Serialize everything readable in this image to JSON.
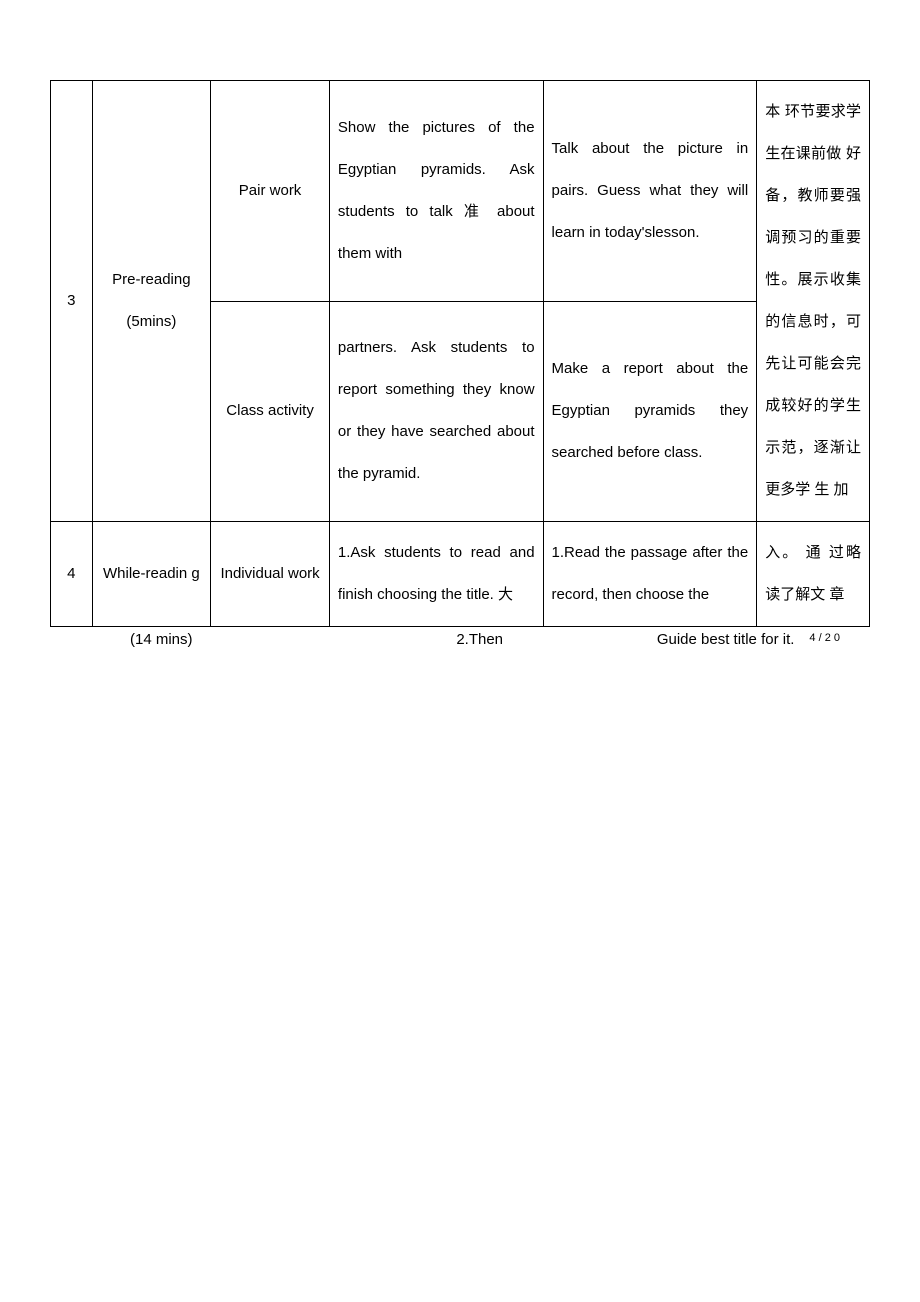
{
  "table": {
    "rows": [
      {
        "num": "3",
        "stage": "Pre-reading (5mins)",
        "sub": [
          {
            "mode": "Pair work",
            "teacher": "Show the pictures of the Egyptian pyramids. Ask students to talk 准 about them with ",
            "student": "Talk about the picture in pairs. Guess what they will learn in today'slesson."
          },
          {
            "mode": "Class activity",
            "teacher": "partners.\nAsk students to report something they know or they have searched about the pyramid.",
            "student": "Make a report about the Egyptian pyramids they searched before class."
          }
        ],
        "notes": "本 环节要求学生在课前做 好 备，教师要强调预习的重要性。展示收集的信息时，可先让可能会完成较好的学生示范，逐渐让更多学 生 加"
      },
      {
        "num": "4",
        "stage": "While-readin g",
        "sub": [
          {
            "mode": "Individual work",
            "teacher": "1.Ask students to read and finish choosing the title. 大",
            "student": "1.Read the passage after the record, then choose the"
          }
        ],
        "notes": "入。\n通 过略读了解文 章"
      }
    ]
  },
  "below": {
    "left": "(14 mins)",
    "mid": "2.Then",
    "right_text": "Guide best title for it.",
    "page_num": "4 / 2 0"
  },
  "style": {
    "background_color": "#ffffff",
    "border_color": "#000000",
    "font_size": 15,
    "line_height": 2.8
  }
}
